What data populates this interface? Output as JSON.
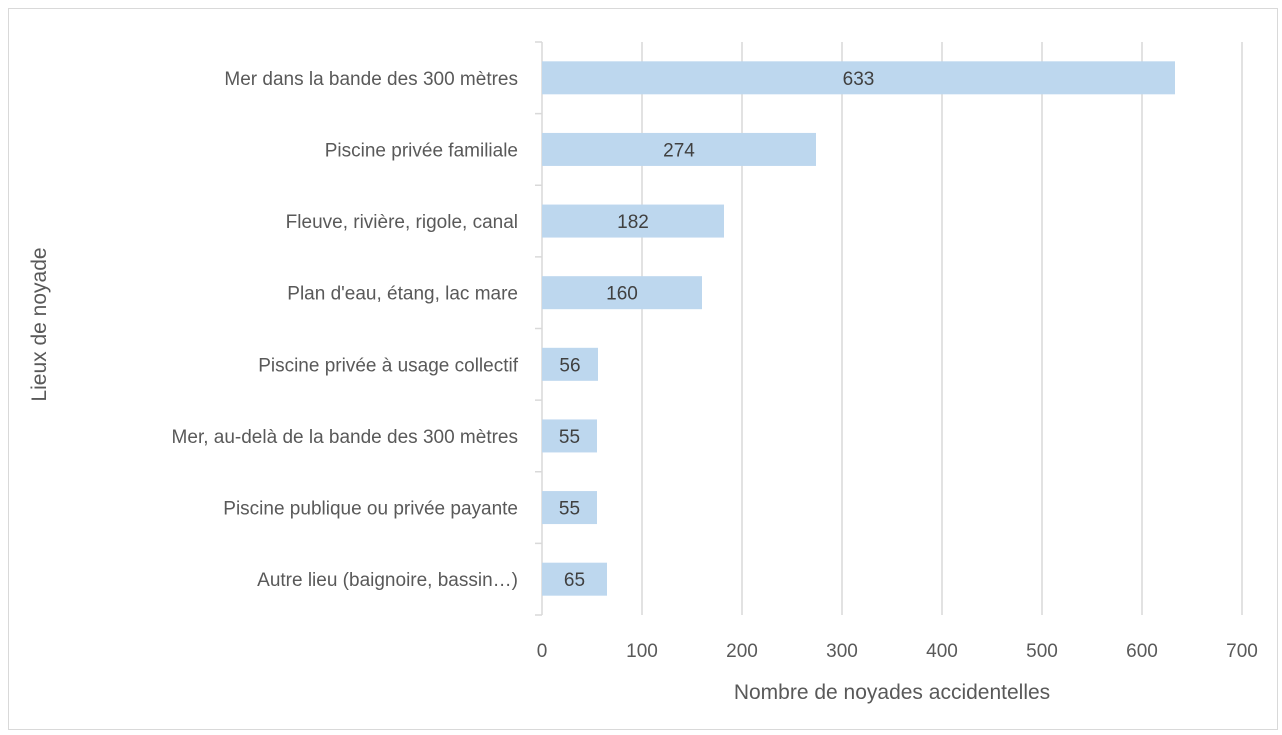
{
  "chart_data": {
    "type": "bar",
    "orientation": "horizontal",
    "categories": [
      "Mer dans la bande des 300 mètres",
      "Piscine privée familiale",
      "Fleuve, rivière, rigole, canal",
      "Plan d'eau, étang, lac mare",
      "Piscine privée à usage collectif",
      "Mer, au-delà de la bande des 300 mètres",
      "Piscine publique ou privée payante",
      "Autre lieu (baignoire, bassin…)"
    ],
    "values": [
      633,
      274,
      182,
      160,
      56,
      55,
      55,
      65
    ],
    "data_labels": [
      "633",
      "274",
      "182",
      "160",
      "56",
      "55",
      "55",
      "65"
    ],
    "title": "",
    "xlabel": "Nombre de noyades accidentelles",
    "ylabel": "Lieux de noyade",
    "xlim": [
      0,
      700
    ],
    "xticks": [
      0,
      100,
      200,
      300,
      400,
      500,
      600,
      700
    ],
    "grid": "vertical",
    "legend": "none",
    "bar_color": "#bdd7ee"
  }
}
